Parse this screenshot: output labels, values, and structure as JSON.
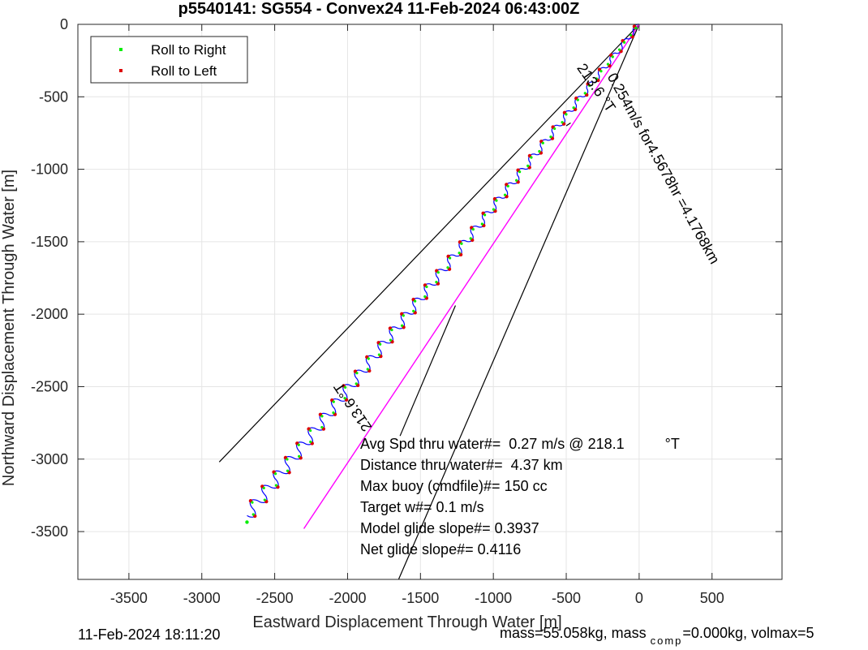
{
  "chart_data": {
    "type": "line",
    "title": "p5540141: SG554 - Convex24 11-Feb-2024 06:43:00Z",
    "xlabel": "Eastward Displacement Through Water [m]",
    "ylabel": "Northward Displacement Through Water [m]",
    "xlim": [
      -3850,
      980
    ],
    "ylim": [
      -3830,
      0
    ],
    "xticks": [
      -3500,
      -3000,
      -2500,
      -2000,
      -1500,
      -1000,
      -500,
      0,
      500
    ],
    "yticks": [
      0,
      -500,
      -1000,
      -1500,
      -2000,
      -2500,
      -3000,
      -3500
    ],
    "grid": true,
    "legend": {
      "position": "top-left",
      "entries": [
        {
          "label": "Roll to Right",
          "color": "#00ee00"
        },
        {
          "label": "Roll to Left",
          "color": "#dd0000"
        }
      ]
    },
    "track_color": "#0000ff",
    "track_start": [
      0,
      0
    ],
    "track_end": [
      -2690,
      -3390
    ],
    "avg_line": {
      "from": [
        0,
        0
      ],
      "to": [
        -2300,
        -3480
      ],
      "color": "#ff00ff"
    },
    "wedge_lines": [
      {
        "from": [
          0,
          0
        ],
        "to": [
          -2880,
          -3020
        ],
        "color": "#000000"
      },
      {
        "from": [
          0,
          0
        ],
        "to": [
          -1650,
          -3830
        ],
        "color": "#000000"
      },
      {
        "from": [
          -1640,
          -2840
        ],
        "to": [
          -1260,
          -1940
        ],
        "color": "#000000"
      },
      {
        "from": [
          -500,
          -700
        ],
        "to": [
          -470,
          -680
        ],
        "color": "#000000"
      }
    ],
    "annotations": [
      {
        "text": "213.6 °T",
        "x": -430,
        "y": -300,
        "angle": 55
      },
      {
        "text": "0.254m/s for4.5678hr =4.1768km",
        "x": -220,
        "y": -360,
        "angle": 61
      },
      {
        "text": "213.6 °T",
        "x": -1830,
        "y": -2780,
        "angle": 236
      }
    ],
    "stats_lines": [
      "Avg Spd thru water#=  0.27 m/s @ 218.1          °T",
      "Distance thru water#=  4.37 km",
      "Max buoy (cmdfile)#= 150 cc",
      "Target w#= 0.1 m/s",
      "Model glide slope#= 0.3937",
      "Net glide slope#= 0.4116"
    ]
  },
  "footer": {
    "timestamp": "11-Feb-2024 18:11:20",
    "mass_text": "mass=55.058kg, mass",
    "comp_sub": "comp",
    "comp_text": "=0.000kg, volmax=5"
  }
}
